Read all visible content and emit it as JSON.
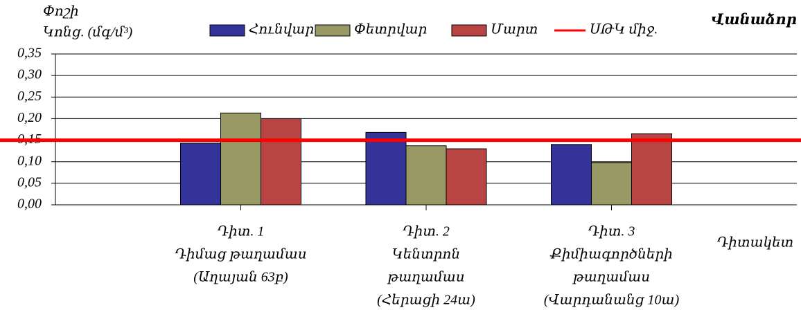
{
  "chart_data": {
    "type": "bar",
    "title": "Վանաձոր",
    "y_label": [
      "Փոշի",
      "Կոնց. (մգ/մ³)"
    ],
    "x_label": "Դիտակետ",
    "categories": [
      [
        "Դիտ. 1",
        "Դիմաց թաղամաս",
        "(Աղայան 63բ)"
      ],
      [
        "Դիտ. 2",
        "Կենտրոն",
        "թաղամաս",
        "(Հերացի 24ա)"
      ],
      [
        "Դիտ. 3",
        "Քիմիագործների",
        "թաղամաս",
        "(Վարդանանց 10ա)"
      ]
    ],
    "series": [
      {
        "name": "Հունվար",
        "color": "#333399",
        "values": [
          0.143,
          0.168,
          0.14
        ]
      },
      {
        "name": "Փետրվար",
        "color": "#999966",
        "values": [
          0.213,
          0.137,
          0.098
        ]
      },
      {
        "name": "Մարտ",
        "color": "#b94444",
        "values": [
          0.2,
          0.13,
          0.165
        ]
      }
    ],
    "reference_line": {
      "name": "ՍԹԿ միջ.",
      "value": 0.15,
      "color": "#ff0000"
    },
    "ylim": [
      0,
      0.35
    ],
    "yticks": [
      {
        "value": 0,
        "label": "0,00"
      },
      {
        "value": 0.05,
        "label": "0,05"
      },
      {
        "value": 0.1,
        "label": "0,10"
      },
      {
        "value": 0.15,
        "label": "0,15"
      },
      {
        "value": 0.2,
        "label": "0,20"
      },
      {
        "value": 0.25,
        "label": "0,25"
      },
      {
        "value": 0.3,
        "label": "0,30"
      },
      {
        "value": 0.35,
        "label": "0,35"
      }
    ],
    "grid": true
  }
}
